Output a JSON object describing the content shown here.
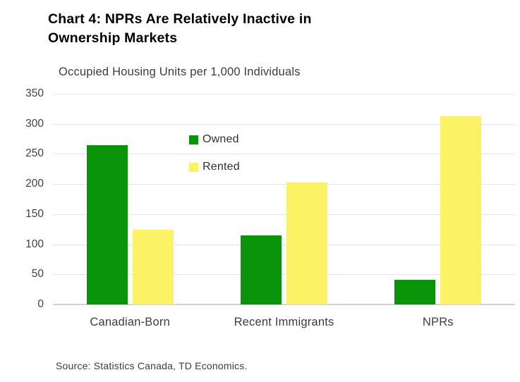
{
  "header": {
    "title_line1": "Chart 4: NPRs Are Relatively Inactive in",
    "title_line2": "Ownership Markets"
  },
  "source_note": "Source: Statistics Canada, TD Economics.",
  "colors": {
    "owned": "#0A940A",
    "rented": "#FBF266",
    "gridline": "#e4e4e4",
    "zero_axis_line": "#d2d2d2",
    "title_text": "#000000",
    "body_text": "#3c3c3c"
  },
  "chart_data": {
    "type": "bar",
    "title": "Occupied Housing Units per 1,000 Individuals",
    "categories": [
      "Canadian-Born",
      "Recent Immigrants",
      "NPRs"
    ],
    "series": [
      {
        "name": "Owned",
        "color": "#0A940A",
        "values": [
          265,
          115,
          41
        ]
      },
      {
        "name": "Rented",
        "color": "#FBF266",
        "values": [
          124,
          202,
          313
        ]
      }
    ],
    "xlabel": "",
    "ylabel": "",
    "ylim": [
      0,
      350
    ],
    "ytick_step": 50,
    "yticks": [
      0,
      50,
      100,
      150,
      200,
      250,
      300,
      350
    ],
    "grid": true,
    "legend_position": "inside-top-center"
  }
}
